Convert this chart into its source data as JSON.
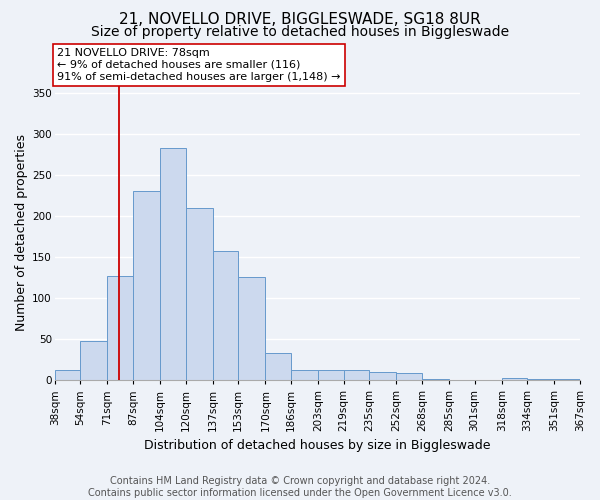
{
  "title": "21, NOVELLO DRIVE, BIGGLESWADE, SG18 8UR",
  "subtitle": "Size of property relative to detached houses in Biggleswade",
  "xlabel": "Distribution of detached houses by size in Biggleswade",
  "ylabel": "Number of detached properties",
  "bar_edges": [
    38,
    54,
    71,
    87,
    104,
    120,
    137,
    153,
    170,
    186,
    203,
    219,
    235,
    252,
    268,
    285,
    301,
    318,
    334,
    351,
    367
  ],
  "bar_heights": [
    12,
    47,
    127,
    230,
    283,
    210,
    157,
    125,
    33,
    12,
    12,
    12,
    10,
    8,
    1,
    0,
    0,
    3,
    1,
    1
  ],
  "bar_color": "#ccd9ee",
  "bar_edge_color": "#6699cc",
  "property_value": 78,
  "red_line_color": "#cc0000",
  "annotation_text": "21 NOVELLO DRIVE: 78sqm\n← 9% of detached houses are smaller (116)\n91% of semi-detached houses are larger (1,148) →",
  "annotation_box_color": "#ffffff",
  "annotation_box_edge_color": "#cc0000",
  "ylim": [
    0,
    360
  ],
  "yticks": [
    0,
    50,
    100,
    150,
    200,
    250,
    300,
    350
  ],
  "footer_line1": "Contains HM Land Registry data © Crown copyright and database right 2024.",
  "footer_line2": "Contains public sector information licensed under the Open Government Licence v3.0.",
  "background_color": "#eef2f8",
  "grid_color": "#ffffff",
  "title_fontsize": 11,
  "subtitle_fontsize": 10,
  "axis_label_fontsize": 9,
  "tick_fontsize": 7.5,
  "annotation_fontsize": 8,
  "footer_fontsize": 7
}
